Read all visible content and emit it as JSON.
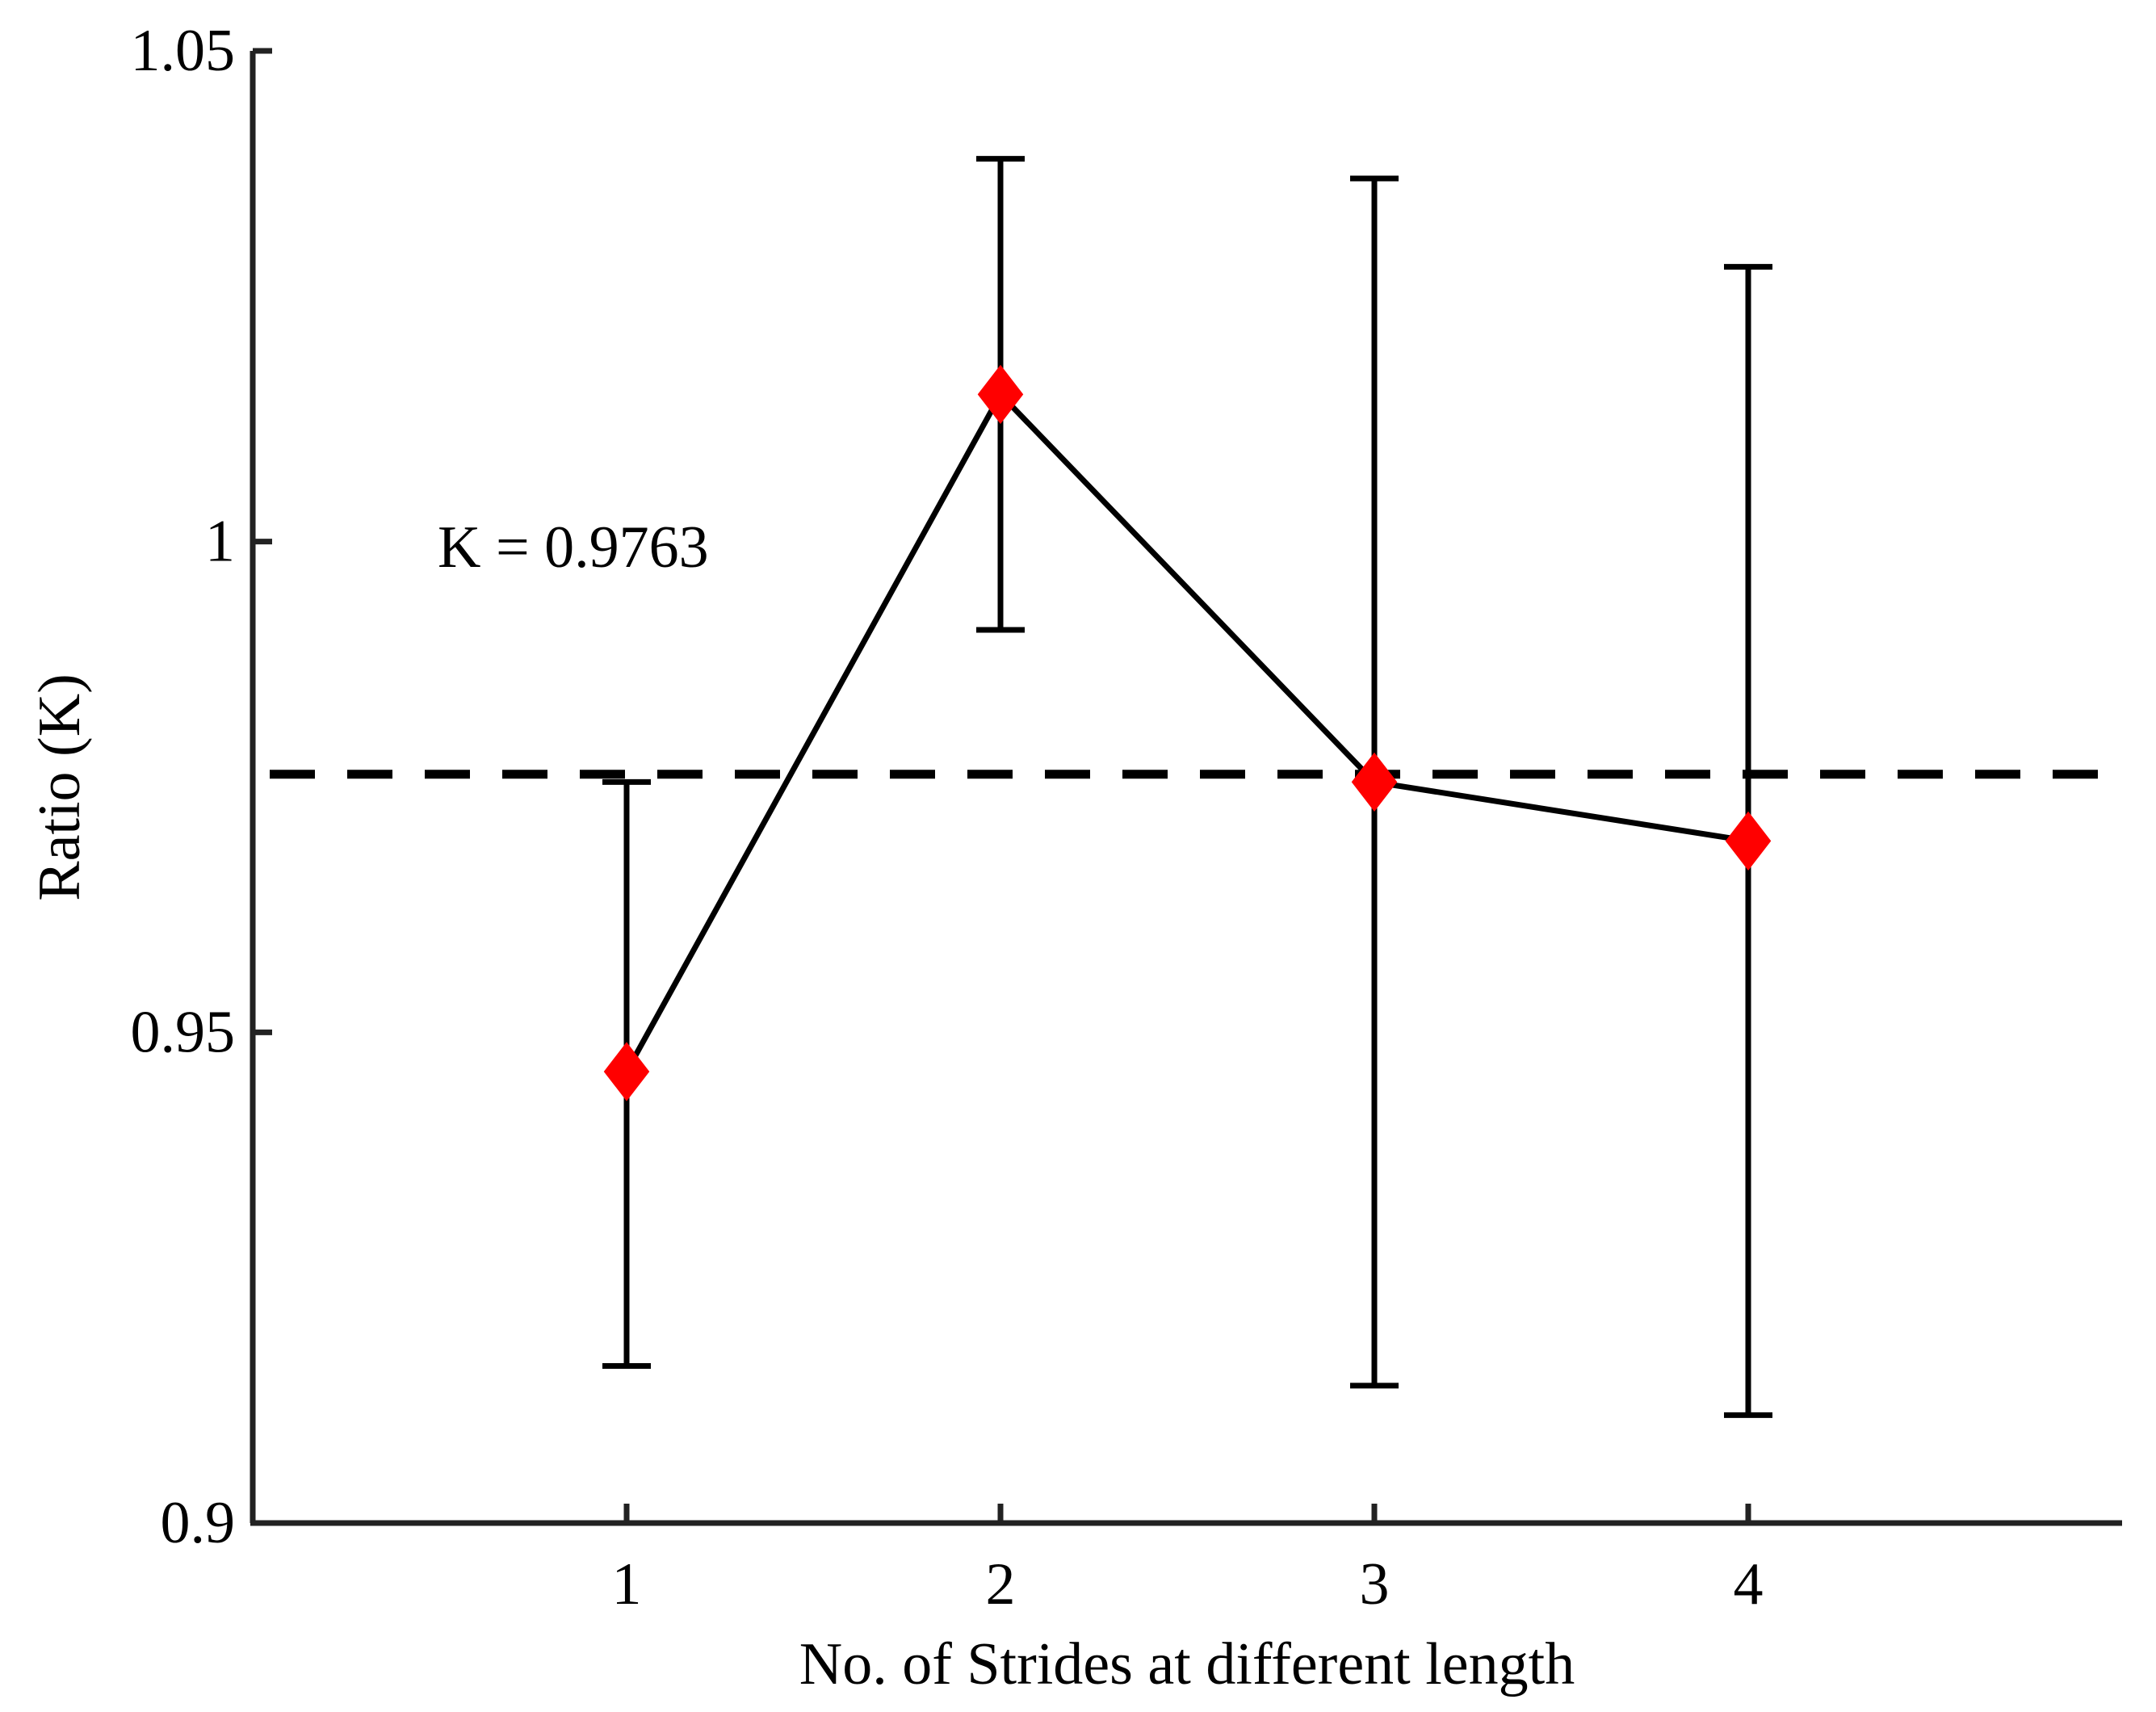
{
  "chart_data": {
    "type": "line",
    "title": "",
    "xlabel": "No. of Strides at different length",
    "ylabel": "Ratio (K)",
    "xlim": [
      0,
      5
    ],
    "ylim": [
      0.9,
      1.05
    ],
    "x_ticks": [
      1,
      2,
      3,
      4
    ],
    "x_tick_labels": [
      "1",
      "2",
      "3",
      "4"
    ],
    "y_ticks": [
      0.9,
      0.95,
      1.0,
      1.05
    ],
    "y_tick_labels": [
      "0.9",
      "0.95",
      "1",
      "1.05"
    ],
    "grid": false,
    "series": [
      {
        "name": "Ratio K",
        "x": [
          1,
          2,
          3,
          4
        ],
        "values": [
          0.946,
          1.015,
          0.9755,
          0.9695
        ],
        "error_low": [
          0.916,
          0.991,
          0.914,
          0.911
        ],
        "error_high": [
          0.9755,
          1.039,
          1.037,
          1.028
        ],
        "line_color": "#000000",
        "marker": "diamond",
        "marker_color": "#ff0000"
      }
    ],
    "reference_line": {
      "y": 0.9763,
      "style": "dashed",
      "color": "#000000"
    },
    "annotation": {
      "text": "K = 0.9763",
      "x": 1.0,
      "y": 0.9995
    }
  }
}
